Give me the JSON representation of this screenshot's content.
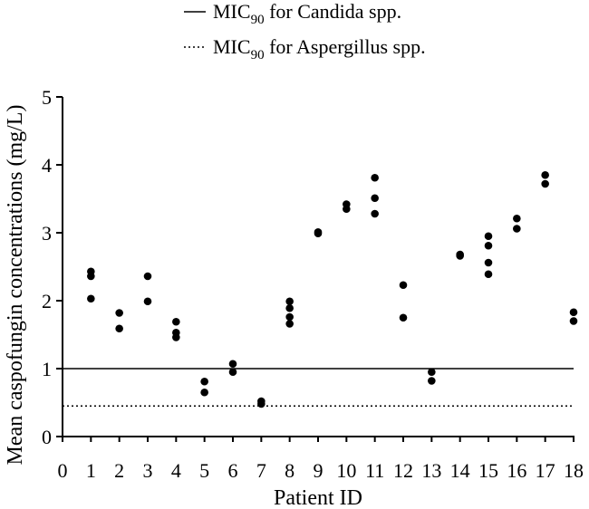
{
  "chart_data": {
    "type": "scatter",
    "title": "",
    "xlabel": "Patient ID",
    "ylabel": "Mean caspofungin concentrations (mg/L)",
    "xlim": [
      0,
      18
    ],
    "ylim": [
      0,
      5
    ],
    "x_ticks": [
      0,
      1,
      2,
      3,
      4,
      5,
      6,
      7,
      8,
      9,
      10,
      11,
      12,
      13,
      14,
      15,
      16,
      17,
      18
    ],
    "y_ticks": [
      0,
      1,
      2,
      3,
      4,
      5
    ],
    "grid": false,
    "legend_position": "top",
    "legend": [
      {
        "prefix": "MIC",
        "subscript": "90",
        "suffix": " for Candida spp.",
        "style": "solid"
      },
      {
        "prefix": "MIC",
        "subscript": "90",
        "suffix": " for Aspergillus spp.",
        "style": "dotted"
      }
    ],
    "reference_lines": [
      {
        "y": 1.0,
        "style": "solid"
      },
      {
        "y": 0.45,
        "style": "dotted"
      }
    ],
    "points": [
      [
        1,
        2.43
      ],
      [
        1,
        2.36
      ],
      [
        1,
        2.03
      ],
      [
        2,
        1.82
      ],
      [
        2,
        1.59
      ],
      [
        3,
        2.36
      ],
      [
        3,
        1.99
      ],
      [
        4,
        1.69
      ],
      [
        4,
        1.53
      ],
      [
        4,
        1.46
      ],
      [
        5,
        0.81
      ],
      [
        5,
        0.65
      ],
      [
        6,
        1.07
      ],
      [
        6,
        0.95
      ],
      [
        7,
        0.52
      ],
      [
        7,
        0.48
      ],
      [
        8,
        1.99
      ],
      [
        8,
        1.89
      ],
      [
        8,
        1.76
      ],
      [
        8,
        1.66
      ],
      [
        9,
        3.01
      ],
      [
        9,
        2.99
      ],
      [
        10,
        3.42
      ],
      [
        10,
        3.35
      ],
      [
        11,
        3.81
      ],
      [
        11,
        3.51
      ],
      [
        11,
        3.28
      ],
      [
        12,
        2.23
      ],
      [
        12,
        1.75
      ],
      [
        13,
        0.95
      ],
      [
        13,
        0.82
      ],
      [
        14,
        2.68
      ],
      [
        14,
        2.66
      ],
      [
        15,
        2.95
      ],
      [
        15,
        2.81
      ],
      [
        15,
        2.56
      ],
      [
        15,
        2.39
      ],
      [
        16,
        3.21
      ],
      [
        16,
        3.06
      ],
      [
        17,
        3.85
      ],
      [
        17,
        3.72
      ],
      [
        18,
        1.83
      ],
      [
        18,
        1.7
      ]
    ]
  }
}
